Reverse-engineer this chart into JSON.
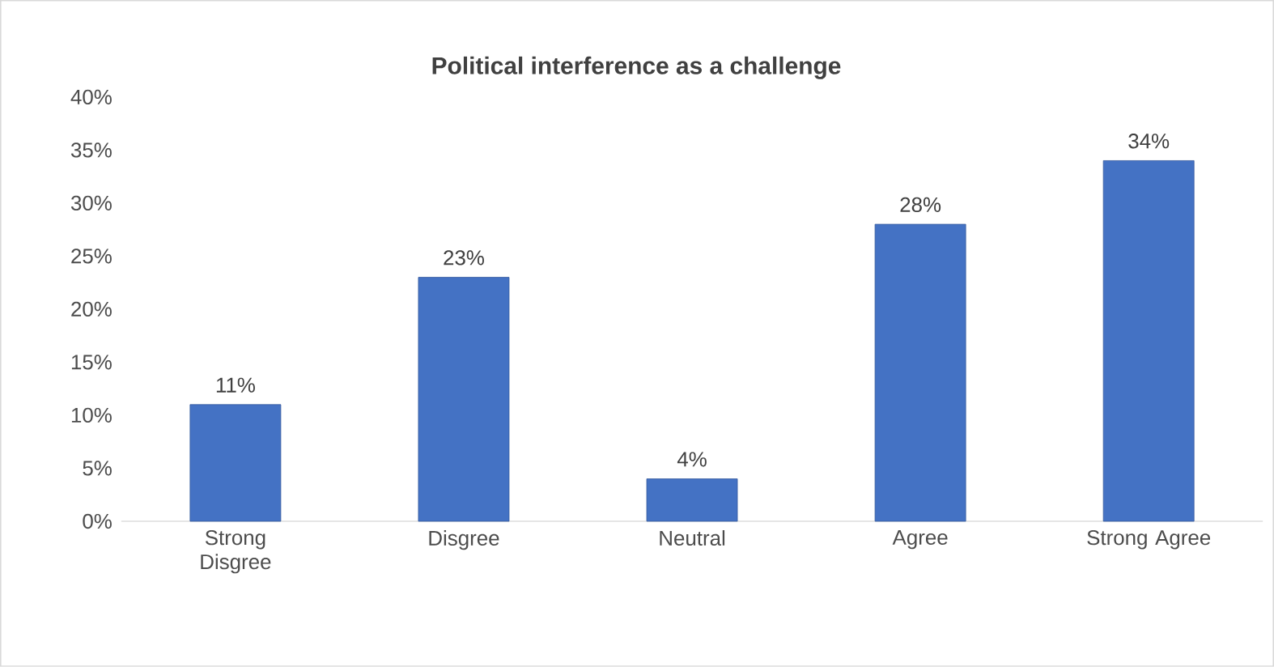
{
  "chart_data": {
    "type": "bar",
    "title": "Political interference as a challenge",
    "categories": [
      "Strong Disgree",
      "Disgree",
      "Neutral",
      "Agree",
      "Strong Agree"
    ],
    "values": [
      11,
      23,
      4,
      28,
      34
    ],
    "value_labels": [
      "11%",
      "23%",
      "4%",
      "28%",
      "34%"
    ],
    "color": "#4472c4",
    "ylim": [
      0,
      40
    ],
    "yticks": [
      {
        "value": 0,
        "label": "0%"
      },
      {
        "value": 5,
        "label": "5%"
      },
      {
        "value": 10,
        "label": "10%"
      },
      {
        "value": 15,
        "label": "15%"
      },
      {
        "value": 20,
        "label": "20%"
      },
      {
        "value": 25,
        "label": "25%"
      },
      {
        "value": 30,
        "label": "30%"
      },
      {
        "value": 35,
        "label": "35%"
      },
      {
        "value": 40,
        "label": "40%"
      }
    ],
    "grid": false
  }
}
